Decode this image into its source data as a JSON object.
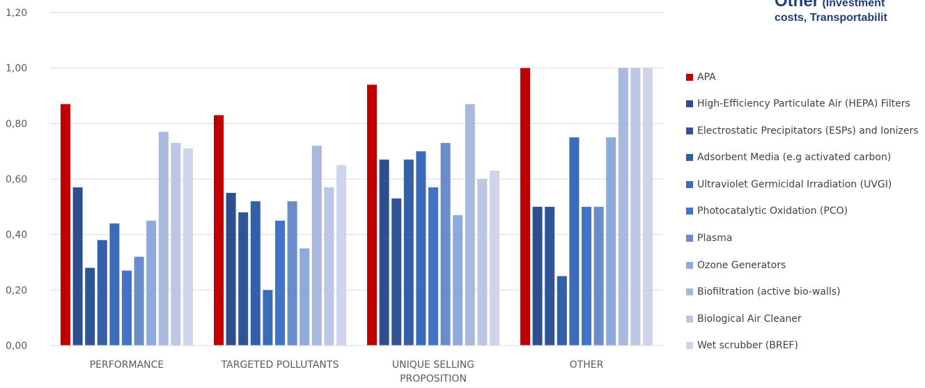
{
  "header_note": {
    "word": "Other",
    "rest_line1": "(Investment",
    "line2": "costs, Transportabilit"
  },
  "chart_data": {
    "type": "bar",
    "categories": [
      "PERFORMANCE",
      "TARGETED POLLUTANTS",
      "UNIQUE SELLING PROPOSITION",
      "OTHER"
    ],
    "category_lines": [
      [
        "PERFORMANCE"
      ],
      [
        "TARGETED POLLUTANTS"
      ],
      [
        "UNIQUE SELLING",
        "PROPOSITION"
      ],
      [
        "OTHER"
      ]
    ],
    "ylim": [
      0,
      1.2
    ],
    "yticks": [
      "0,00",
      "0,20",
      "0,40",
      "0,60",
      "0,80",
      "1,00",
      "1,20"
    ],
    "grid": true,
    "legend_position": "right",
    "series": [
      {
        "name": "APA",
        "color": "#c00000",
        "values": [
          0.87,
          0.83,
          0.94,
          1.0
        ]
      },
      {
        "name": "High-Efficiency Particulate Air (HEPA) Filters",
        "color": "#2e4f8f",
        "values": [
          0.57,
          0.55,
          0.67,
          0.5
        ]
      },
      {
        "name": "Electrostatic Precipitators (ESPs) and Ionizers",
        "color": "#2f5597",
        "values": [
          0.28,
          0.48,
          0.53,
          0.5
        ]
      },
      {
        "name": "Adsorbent Media (e.g activated carbon)",
        "color": "#335fa6",
        "values": [
          0.38,
          0.52,
          0.67,
          0.25
        ]
      },
      {
        "name": "Ultraviolet Germicidal Irradiation (UVGI)",
        "color": "#3a6cb9",
        "values": [
          0.44,
          0.2,
          0.7,
          0.75
        ]
      },
      {
        "name": "Photocatalytic Oxidation (PCO)",
        "color": "#4472c4",
        "values": [
          0.27,
          0.45,
          0.57,
          0.5
        ]
      },
      {
        "name": "Plasma",
        "color": "#6a8cca",
        "values": [
          0.32,
          0.52,
          0.73,
          0.5
        ]
      },
      {
        "name": "Ozone Generators",
        "color": "#8ea9db",
        "values": [
          0.45,
          0.35,
          0.47,
          0.75
        ]
      },
      {
        "name": "Biofiltration (active bio-walls)",
        "color": "#a9b8dd",
        "values": [
          0.77,
          0.72,
          0.87,
          1.0
        ]
      },
      {
        "name": "Biological Air Cleaner",
        "color": "#bcc6e5",
        "values": [
          0.73,
          0.57,
          0.6,
          1.0
        ]
      },
      {
        "name": "Wet scrubber (BREF)",
        "color": "#cdd4ec",
        "values": [
          0.71,
          0.65,
          0.63,
          1.0
        ]
      }
    ]
  }
}
